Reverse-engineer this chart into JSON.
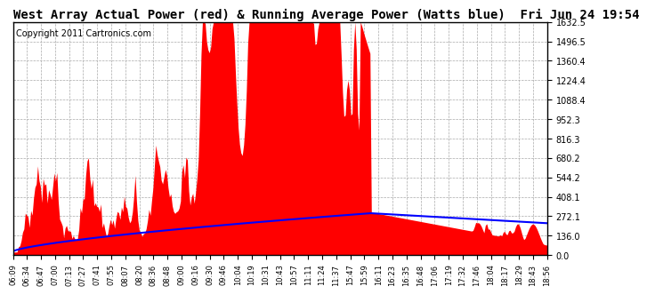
{
  "title": "West Array Actual Power (red) & Running Average Power (Watts blue)  Fri Jun 24 19:54",
  "copyright": "Copyright 2011 Cartronics.com",
  "ylabel_right_ticks": [
    0.0,
    136.0,
    272.1,
    408.1,
    544.2,
    680.2,
    816.3,
    952.3,
    1088.4,
    1224.4,
    1360.4,
    1496.5,
    1632.5
  ],
  "ylim": [
    0,
    1632.5
  ],
  "x_labels": [
    "06:09",
    "06:34",
    "06:47",
    "07:00",
    "07:13",
    "07:27",
    "07:41",
    "07:55",
    "08:07",
    "08:20",
    "08:36",
    "08:48",
    "09:00",
    "09:16",
    "09:30",
    "09:46",
    "10:04",
    "10:19",
    "10:31",
    "10:43",
    "10:57",
    "11:11",
    "11:24",
    "11:37",
    "15:47",
    "15:59",
    "16:11",
    "16:23",
    "16:35",
    "16:48",
    "17:06",
    "17:19",
    "17:32",
    "17:46",
    "18:04",
    "18:17",
    "18:29",
    "18:43",
    "18:56"
  ],
  "actual_color": "#FF0000",
  "avg_color": "#0000FF",
  "background_color": "#FFFFFF",
  "grid_color": "#AAAAAA",
  "title_fontsize": 10,
  "copyright_fontsize": 7,
  "tick_fontsize": 7
}
